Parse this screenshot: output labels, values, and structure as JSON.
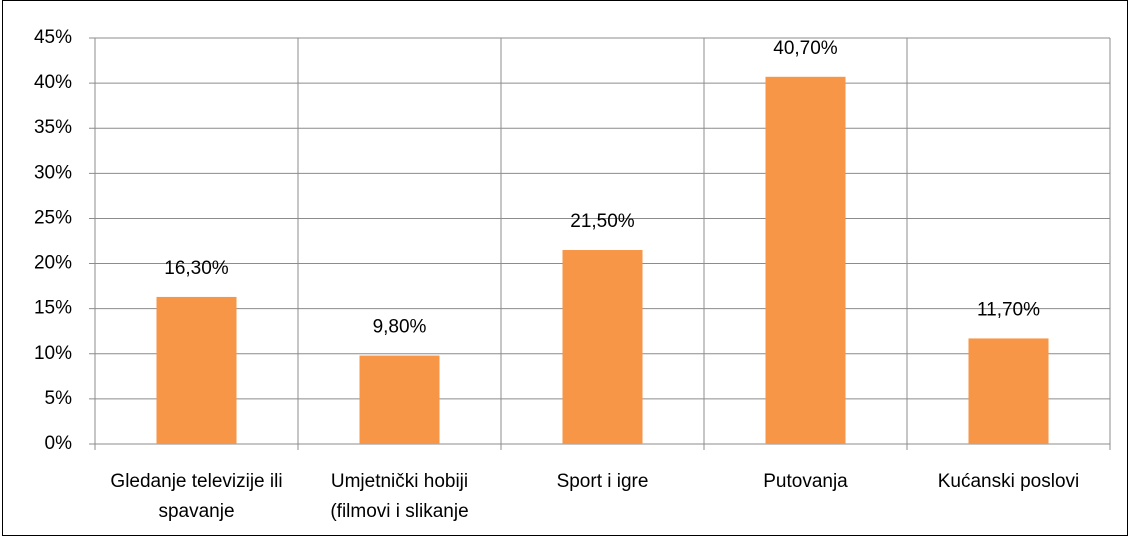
{
  "chart_data": {
    "type": "bar",
    "categories": [
      "Gledanje televizije ili spavanje",
      "Umjetnički hobiji (filmovi i slikanje",
      "Sport i igre",
      "Putovanja",
      "Kućanski poslovi"
    ],
    "values": [
      16.3,
      9.8,
      21.5,
      40.7,
      11.7
    ],
    "value_labels": [
      "16,30%",
      "9,80%",
      "21,50%",
      "40,70%",
      "11,70%"
    ],
    "color": "#f79646",
    "ylim": [
      0,
      45
    ],
    "yticks": [
      {
        "value": 0,
        "label": "0%"
      },
      {
        "value": 5,
        "label": "5%"
      },
      {
        "value": 10,
        "label": "10%"
      },
      {
        "value": 15,
        "label": "15%"
      },
      {
        "value": 20,
        "label": "20%"
      },
      {
        "value": 25,
        "label": "25%"
      },
      {
        "value": 30,
        "label": "30%"
      },
      {
        "value": 35,
        "label": "35%"
      },
      {
        "value": 40,
        "label": "40%"
      },
      {
        "value": 45,
        "label": "45%"
      }
    ],
    "grid": true
  }
}
